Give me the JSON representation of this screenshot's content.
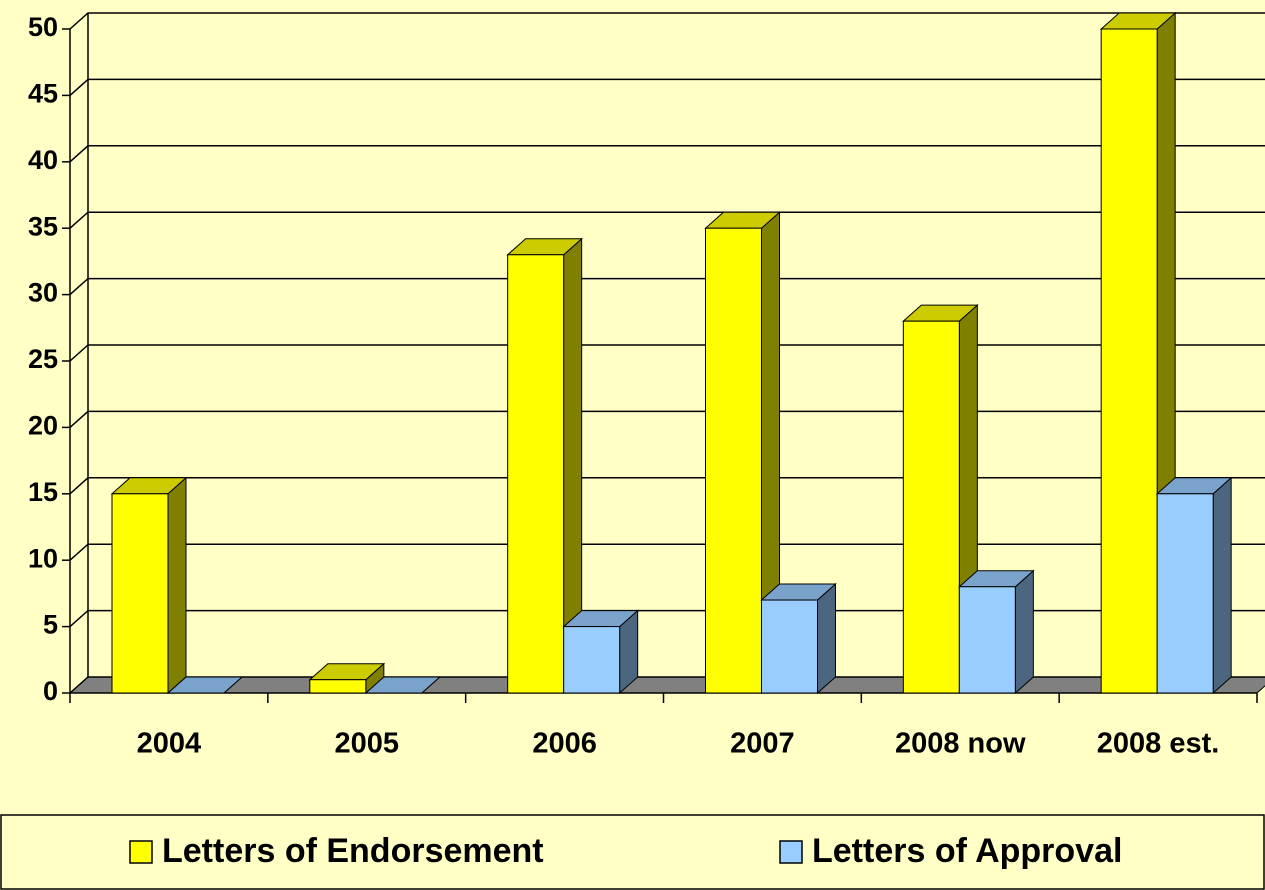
{
  "chart_data": {
    "type": "bar3d",
    "categories": [
      "2004",
      "2005",
      "2006",
      "2007",
      "2008 now",
      "2008 est."
    ],
    "series": [
      {
        "name": "Letters of Endorsement",
        "color": "#ffff00",
        "values": [
          15,
          1,
          33,
          35,
          28,
          50
        ]
      },
      {
        "name": "Letters of Approval",
        "color": "#99ccff",
        "values": [
          0,
          0,
          5,
          7,
          8,
          15
        ]
      }
    ],
    "ylim": [
      0,
      50
    ],
    "yticks": [
      0,
      5,
      10,
      15,
      20,
      25,
      30,
      35,
      40,
      45,
      50
    ],
    "grid": true,
    "legend": "bottom"
  }
}
